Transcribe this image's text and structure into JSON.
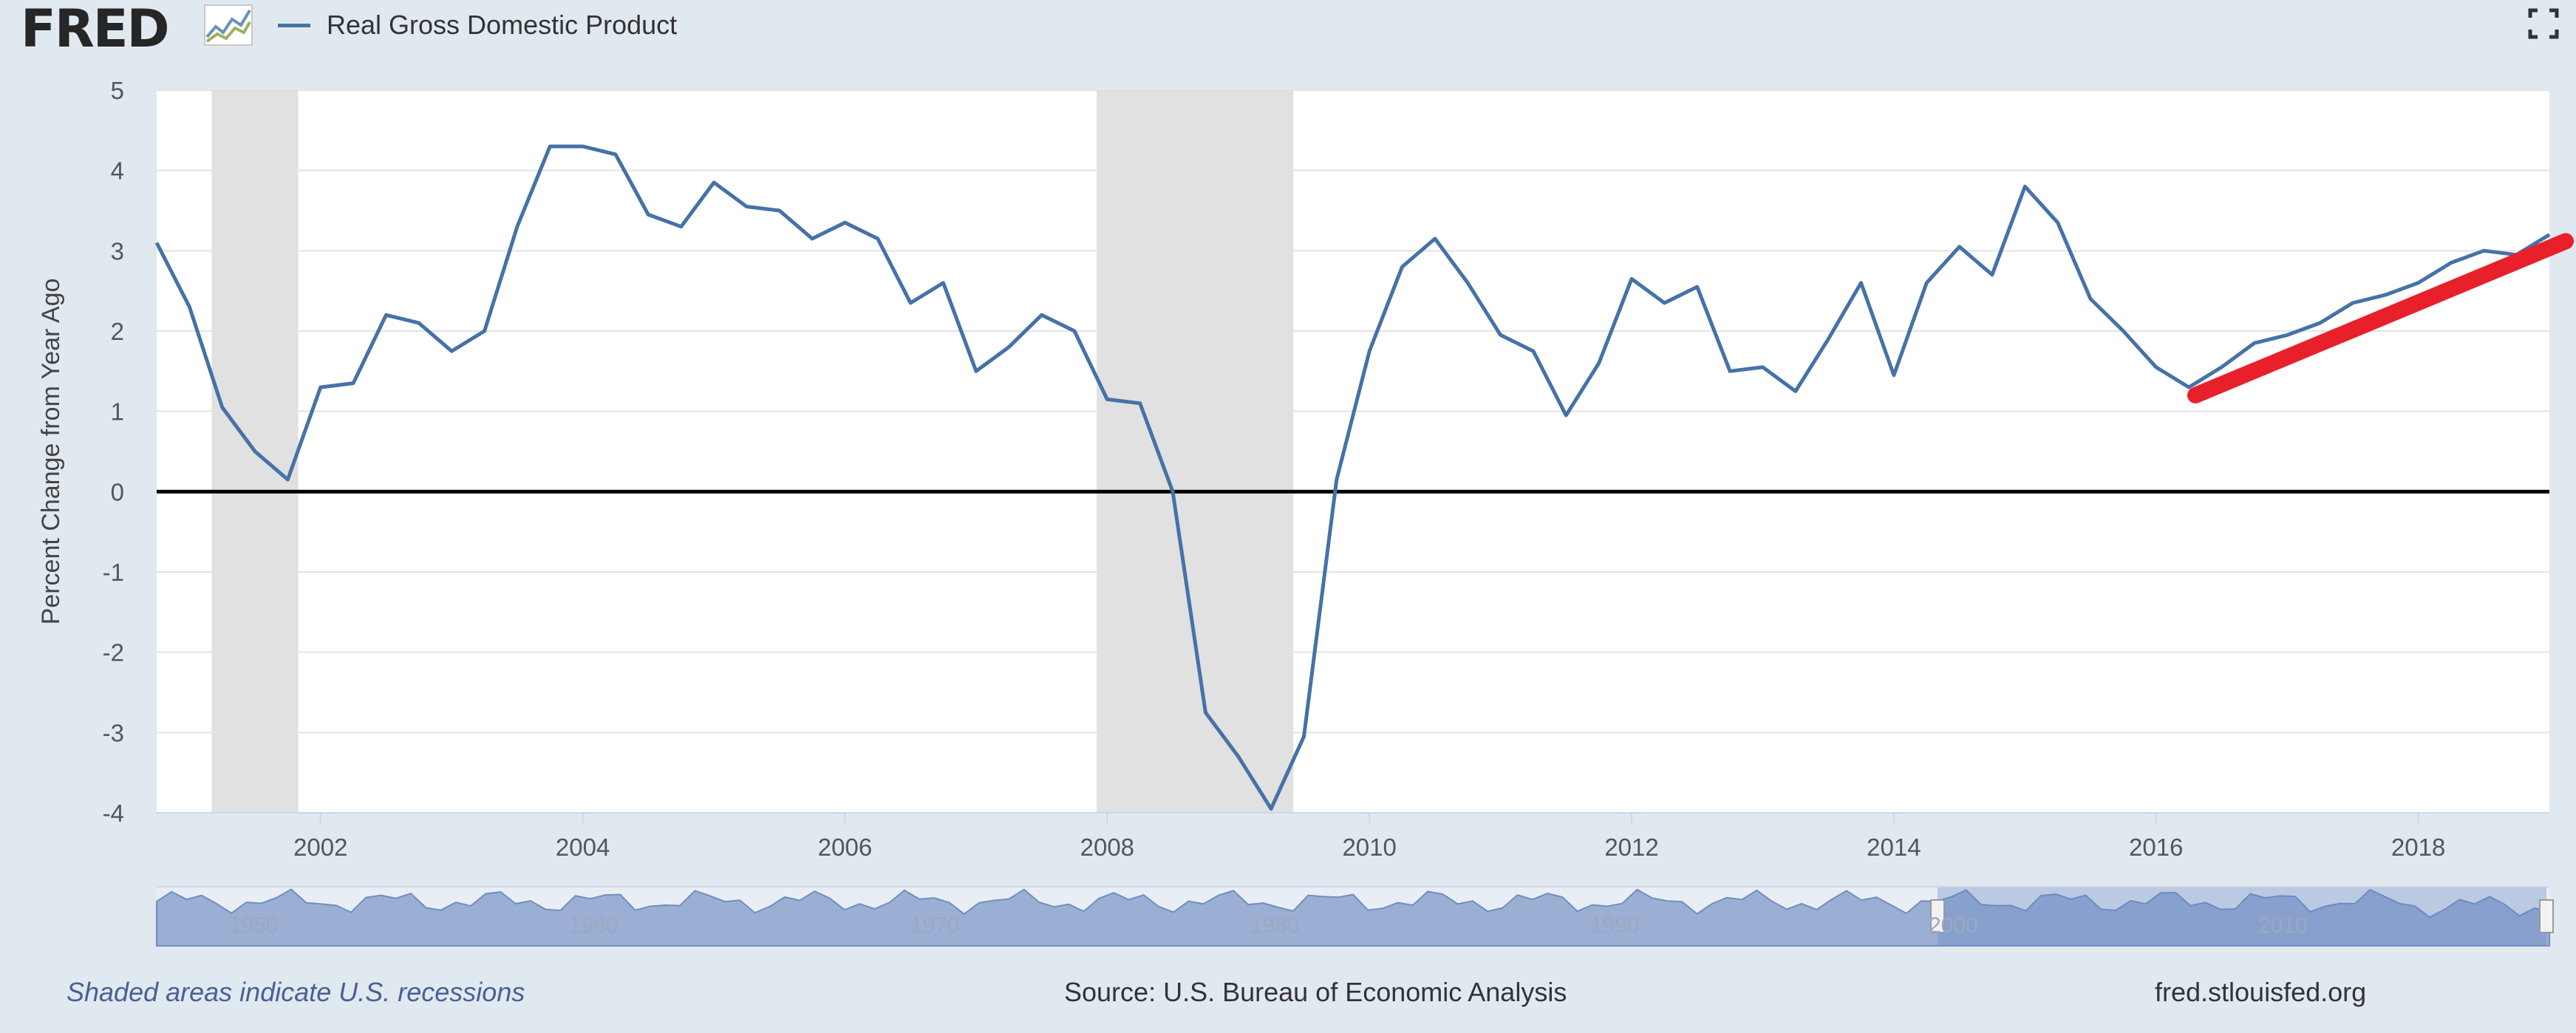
{
  "header": {
    "logo_text": "FRED",
    "logo_icon": "line-graph-icon",
    "legend_label": "Real Gross Domestic Product",
    "fullscreen_icon": "fullscreen-icon"
  },
  "footer": {
    "recession_note": "Shaded areas indicate U.S. recessions",
    "source": "Source: U.S. Bureau of Economic Analysis",
    "site": "fred.stlouisfed.org"
  },
  "colors": {
    "series": "#4572a7",
    "recession": "#e1e1e1",
    "trend": "#e8202a",
    "zero_line": "#000000"
  },
  "chart_data": {
    "type": "line",
    "title": "",
    "xlabel": "",
    "ylabel": "Percent Change from Year Ago",
    "xlim": [
      2000.75,
      2019.0
    ],
    "ylim": [
      -4,
      5
    ],
    "x_ticks": [
      2002,
      2004,
      2006,
      2008,
      2010,
      2012,
      2014,
      2016,
      2018
    ],
    "y_ticks": [
      5,
      4,
      3,
      2,
      1,
      0,
      -1,
      -2,
      -3,
      -4
    ],
    "grid": true,
    "legend": "top-left",
    "series": [
      {
        "name": "Real Gross Domestic Product",
        "x": [
          2000.75,
          2001.0,
          2001.25,
          2001.5,
          2001.75,
          2002.0,
          2002.25,
          2002.5,
          2002.75,
          2003.0,
          2003.25,
          2003.5,
          2003.75,
          2004.0,
          2004.25,
          2004.5,
          2004.75,
          2005.0,
          2005.25,
          2005.5,
          2005.75,
          2006.0,
          2006.25,
          2006.5,
          2006.75,
          2007.0,
          2007.25,
          2007.5,
          2007.75,
          2008.0,
          2008.25,
          2008.5,
          2008.75,
          2009.0,
          2009.25,
          2009.5,
          2009.75,
          2010.0,
          2010.25,
          2010.5,
          2010.75,
          2011.0,
          2011.25,
          2011.5,
          2011.75,
          2012.0,
          2012.25,
          2012.5,
          2012.75,
          2013.0,
          2013.25,
          2013.5,
          2013.75,
          2014.0,
          2014.25,
          2014.5,
          2014.75,
          2015.0,
          2015.25,
          2015.5,
          2015.75,
          2016.0,
          2016.25,
          2016.5,
          2016.75,
          2017.0,
          2017.25,
          2017.5,
          2017.75,
          2018.0,
          2018.25,
          2018.5,
          2018.75,
          2019.0
        ],
        "values": [
          3.1,
          2.3,
          1.05,
          0.5,
          0.15,
          1.3,
          1.35,
          2.2,
          2.1,
          1.75,
          2.0,
          3.3,
          4.3,
          4.3,
          4.2,
          3.45,
          3.3,
          3.85,
          3.55,
          3.5,
          3.15,
          3.35,
          3.15,
          2.35,
          2.6,
          1.5,
          1.8,
          2.2,
          2.0,
          1.15,
          1.1,
          0.0,
          -2.75,
          -3.3,
          -3.95,
          -3.05,
          0.15,
          1.75,
          2.8,
          3.15,
          2.6,
          1.95,
          1.75,
          0.95,
          1.6,
          2.65,
          2.35,
          2.55,
          1.5,
          1.55,
          1.25,
          1.9,
          2.6,
          1.45,
          2.6,
          3.05,
          2.7,
          3.8,
          3.35,
          2.4,
          2.0,
          1.55,
          1.3,
          1.55,
          1.85,
          1.95,
          2.1,
          2.35,
          2.45,
          2.6,
          2.85,
          3.0,
          2.95,
          3.2
        ]
      }
    ],
    "recessions": [
      [
        2001.17,
        2001.83
      ],
      [
        2007.92,
        2009.42
      ]
    ],
    "annotations": [
      {
        "type": "trend-line",
        "x": [
          2016.3,
          2019.25
        ],
        "values": [
          1.2,
          3.1
        ]
      }
    ],
    "navigator": {
      "x_ticks": [
        "1950",
        "1960",
        "1970",
        "1980",
        "1990",
        "2000",
        "2010"
      ],
      "selected_range": [
        2000.75,
        2019.0
      ]
    }
  }
}
